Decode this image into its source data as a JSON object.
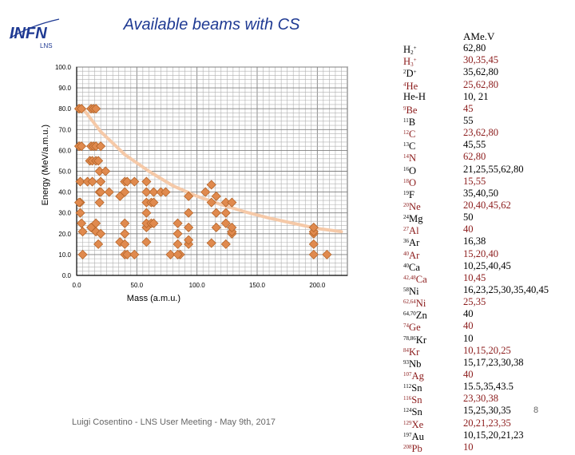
{
  "slide": {
    "title": "Available beams with CS",
    "logo_text": "INFN",
    "logo_sub": "LNS",
    "footer": "Luigi Cosentino - LNS User Meeting - May 9th, 2017",
    "page_number": "8"
  },
  "colors": {
    "accent": "#1f3a93",
    "marker": "#e08a4e",
    "marker_edge": "#b5652a",
    "curve": "#f5c9a8",
    "dark_red": "#8b1a1a"
  },
  "table": {
    "header_energy": "AMe.V",
    "rows": [
      {
        "base": "H",
        "sub": "2",
        "sup": "+",
        "sub_after_base": true,
        "energy": "62,80",
        "red": false
      },
      {
        "base": "H",
        "sub": "3",
        "sup": "+",
        "sub_after_base": true,
        "energy": "30,35,45",
        "red": true
      },
      {
        "base": "D",
        "sup_before": "2",
        "sup": "+",
        "energy": "35,62,80",
        "red": false
      },
      {
        "base": "He",
        "sup_before": "4",
        "energy": "25,62,80",
        "red": true
      },
      {
        "base": "He-H",
        "energy": "10, 21",
        "red": false
      },
      {
        "base": "Be",
        "sup_before": "9",
        "energy": "45",
        "red": true
      },
      {
        "base": "B",
        "sup_before": "11",
        "energy": "55",
        "red": false
      },
      {
        "base": "C",
        "sup_before": "12",
        "energy": "23,62,80",
        "red": true
      },
      {
        "base": "C",
        "sup_before": "13",
        "energy": "45,55",
        "red": false
      },
      {
        "base": "N",
        "sup_before": "14",
        "energy": "62,80",
        "red": true
      },
      {
        "base": "O",
        "sup_before": "16",
        "energy": "21,25,55,62,80",
        "red": false
      },
      {
        "base": "O",
        "sup_before": "18",
        "energy": "15,55",
        "red": true
      },
      {
        "base": "F",
        "sup_before": "19",
        "energy": "35,40,50",
        "red": false
      },
      {
        "base": "Ne",
        "sup_before": "20",
        "energy": "20,40,45,62",
        "red": true
      },
      {
        "base": "Mg",
        "sup_before": "24",
        "energy": "50",
        "red": false
      },
      {
        "base": "Al",
        "sup_before": "27",
        "energy": "40",
        "red": true
      },
      {
        "base": "Ar",
        "sup_before": "36",
        "energy": "16,38",
        "red": false
      },
      {
        "base": "Ar",
        "sup_before": "40",
        "energy": "15,20,40",
        "red": true
      },
      {
        "base": "Ca",
        "sup_before": "40",
        "energy": "10,25,40,45",
        "red": false
      },
      {
        "base": "Ca",
        "sup_before": "42,48",
        "energy": "10,45",
        "red": true
      },
      {
        "base": "Ni",
        "sup_before": "58",
        "energy": "16,23,25,30,35,40,45",
        "red": false
      },
      {
        "base": "Ni",
        "sup_before": "62,64",
        "energy": "25,35",
        "red": true
      },
      {
        "base": "Zn",
        "sup_before": "64,70",
        "energy": "40",
        "red": false
      },
      {
        "base": "Ge",
        "sup_before": "74",
        "energy": "40",
        "red": true
      },
      {
        "base": "Kr",
        "sup_before": "78,86",
        "energy": "10",
        "red": false
      },
      {
        "base": "Kr",
        "sup_before": "84",
        "energy": "10,15,20,25",
        "red": true
      },
      {
        "base": "Nb",
        "sup_before": "93",
        "energy": "15,17,23,30,38",
        "red": false
      },
      {
        "base": "Ag",
        "sup_before": "107",
        "energy": "40",
        "red": true
      },
      {
        "base": "Sn",
        "sup_before": "112",
        "energy": "15.5,35,43.5",
        "red": false
      },
      {
        "base": "Sn",
        "sup_before": "116",
        "energy": "23,30,38",
        "red": true
      },
      {
        "base": "Sn",
        "sup_before": "124",
        "energy": "15,25,30,35",
        "red": false
      },
      {
        "base": "Xe",
        "sup_before": "129",
        "energy": "20,21,23,35",
        "red": true
      },
      {
        "base": "Au",
        "sup_before": "197",
        "energy": "10,15,20,21,23",
        "red": false
      },
      {
        "base": "Pb",
        "sup_before": "208",
        "energy": "10",
        "red": true
      }
    ]
  },
  "chart_data": {
    "type": "scatter",
    "title": "",
    "xlabel": "Mass (a.m.u.)",
    "ylabel": "Energy (MeV/a.m.u.)",
    "xlim": [
      0,
      225
    ],
    "ylim": [
      0,
      100
    ],
    "xticks": [
      "0.0",
      "50.0",
      "100.0",
      "150.0",
      "200.0"
    ],
    "yticks": [
      "0.0",
      "10.0",
      "20.0",
      "30.0",
      "40.0",
      "50.0",
      "60.0",
      "70.0",
      "80.0",
      "90.0",
      "100.0"
    ],
    "grid": true,
    "series": [
      {
        "name": "Available beams",
        "points": [
          [
            2,
            62
          ],
          [
            2,
            80
          ],
          [
            3,
            30
          ],
          [
            3,
            35
          ],
          [
            3,
            45
          ],
          [
            2,
            35
          ],
          [
            2,
            62
          ],
          [
            2,
            80
          ],
          [
            4,
            25
          ],
          [
            4,
            62
          ],
          [
            4,
            80
          ],
          [
            5,
            10
          ],
          [
            5,
            21
          ],
          [
            9,
            45
          ],
          [
            11,
            55
          ],
          [
            12,
            23
          ],
          [
            12,
            62
          ],
          [
            12,
            80
          ],
          [
            13,
            45
          ],
          [
            13,
            55
          ],
          [
            14,
            62
          ],
          [
            14,
            80
          ],
          [
            16,
            21
          ],
          [
            16,
            25
          ],
          [
            16,
            55
          ],
          [
            16,
            62
          ],
          [
            16,
            80
          ],
          [
            18,
            15
          ],
          [
            18,
            55
          ],
          [
            19,
            35
          ],
          [
            19,
            40
          ],
          [
            19,
            50
          ],
          [
            20,
            20
          ],
          [
            20,
            40
          ],
          [
            20,
            45
          ],
          [
            20,
            62
          ],
          [
            24,
            50
          ],
          [
            27,
            40
          ],
          [
            36,
            16
          ],
          [
            36,
            38
          ],
          [
            40,
            15
          ],
          [
            40,
            20
          ],
          [
            40,
            40
          ],
          [
            40,
            10
          ],
          [
            40,
            25
          ],
          [
            40,
            45
          ],
          [
            42,
            10
          ],
          [
            42,
            45
          ],
          [
            48,
            10
          ],
          [
            48,
            45
          ],
          [
            58,
            16
          ],
          [
            58,
            23
          ],
          [
            58,
            25
          ],
          [
            58,
            30
          ],
          [
            58,
            35
          ],
          [
            58,
            40
          ],
          [
            58,
            45
          ],
          [
            62,
            25
          ],
          [
            62,
            35
          ],
          [
            64,
            25
          ],
          [
            64,
            35
          ],
          [
            64,
            40
          ],
          [
            70,
            40
          ],
          [
            74,
            40
          ],
          [
            78,
            10
          ],
          [
            86,
            10
          ],
          [
            84,
            10
          ],
          [
            84,
            15
          ],
          [
            84,
            20
          ],
          [
            84,
            25
          ],
          [
            93,
            15
          ],
          [
            93,
            17
          ],
          [
            93,
            23
          ],
          [
            93,
            30
          ],
          [
            93,
            38
          ],
          [
            107,
            40
          ],
          [
            112,
            15.5
          ],
          [
            112,
            35
          ],
          [
            112,
            43.5
          ],
          [
            116,
            23
          ],
          [
            116,
            30
          ],
          [
            116,
            38
          ],
          [
            124,
            15
          ],
          [
            124,
            25
          ],
          [
            124,
            30
          ],
          [
            124,
            35
          ],
          [
            129,
            20
          ],
          [
            129,
            21
          ],
          [
            129,
            23
          ],
          [
            129,
            35
          ],
          [
            197,
            10
          ],
          [
            197,
            15
          ],
          [
            197,
            20
          ],
          [
            197,
            21
          ],
          [
            197,
            23
          ],
          [
            208,
            10
          ]
        ]
      },
      {
        "name": "CS limit",
        "type": "line",
        "points": [
          [
            4,
            81
          ],
          [
            20,
            69
          ],
          [
            40,
            58
          ],
          [
            60,
            50
          ],
          [
            80,
            43
          ],
          [
            100,
            38
          ],
          [
            120,
            34
          ],
          [
            140,
            30.5
          ],
          [
            160,
            27.5
          ],
          [
            180,
            25
          ],
          [
            200,
            22.5
          ],
          [
            220,
            21
          ]
        ]
      }
    ]
  }
}
